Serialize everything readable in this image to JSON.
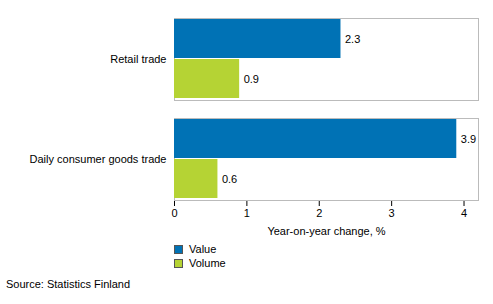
{
  "chart_data": {
    "type": "bar",
    "orientation": "horizontal",
    "categories": [
      "Retail trade",
      "Daily consumer goods trade"
    ],
    "series": [
      {
        "name": "Value",
        "color": "#0072b5",
        "values": [
          2.3,
          3.9
        ]
      },
      {
        "name": "Volume",
        "color": "#b5d334",
        "values": [
          0.9,
          0.6
        ]
      }
    ],
    "xlabel": "Year-on-year change, %",
    "xlim": [
      0,
      4.2
    ],
    "xticks": [
      0,
      1,
      2,
      3,
      4
    ],
    "grid": false,
    "data_labels": true,
    "legend": "bottom",
    "caption": "Source: Statistics Finland"
  }
}
